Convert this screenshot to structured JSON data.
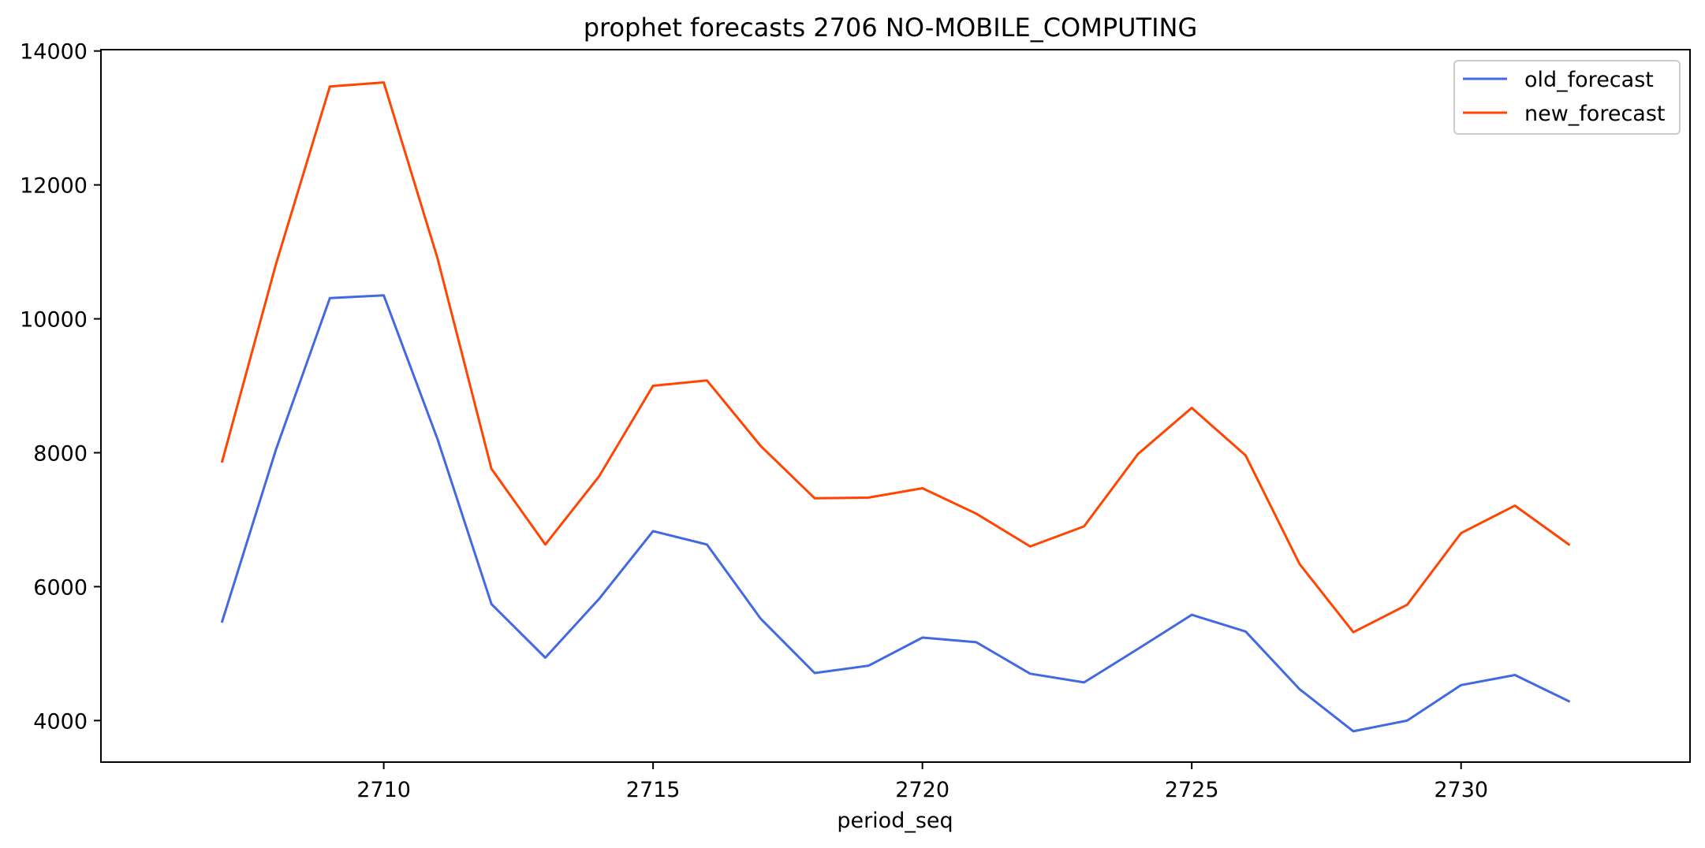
{
  "chart_data": {
    "type": "line",
    "title": "prophet forecasts 2706 NO-MOBILE_COMPUTING",
    "xlabel": "period_seq",
    "ylabel": "",
    "x": [
      2707,
      2708,
      2709,
      2710,
      2711,
      2712,
      2713,
      2714,
      2715,
      2716,
      2717,
      2718,
      2719,
      2720,
      2721,
      2722,
      2723,
      2724,
      2725,
      2726,
      2727,
      2728,
      2729,
      2730,
      2731,
      2732
    ],
    "xlim": [
      2704.75,
      2734.25
    ],
    "ylim": [
      3380,
      14020
    ],
    "xticks": [
      2710,
      2715,
      2720,
      2725,
      2730
    ],
    "yticks": [
      4000,
      6000,
      8000,
      10000,
      12000,
      14000
    ],
    "grid": false,
    "legend_position": "top-right",
    "series": [
      {
        "name": "old_forecast",
        "color": "#4169E1",
        "values": [
          5480,
          8050,
          10310,
          10350,
          8200,
          5740,
          4940,
          5820,
          6830,
          6630,
          5520,
          4710,
          4820,
          5240,
          5170,
          4700,
          4570,
          5070,
          5580,
          5330,
          4470,
          3840,
          4000,
          4530,
          4680,
          4290
        ]
      },
      {
        "name": "new_forecast",
        "color": "#FF4500",
        "values": [
          7870,
          10820,
          13470,
          13530,
          10900,
          7760,
          6630,
          7650,
          9000,
          9080,
          8100,
          7320,
          7330,
          7470,
          7090,
          6600,
          6900,
          7980,
          8670,
          7960,
          6340,
          5320,
          5730,
          6800,
          7210,
          6630
        ]
      }
    ]
  }
}
